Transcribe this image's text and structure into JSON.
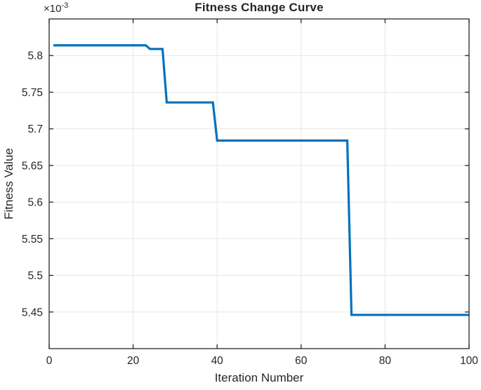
{
  "title": "Fitness Change Curve",
  "axes": {
    "xlabel": "Iteration Number",
    "ylabel": "Fitness Value",
    "y_multiplier_prefix": "×10",
    "y_multiplier_exponent": "-3"
  },
  "chart_data": {
    "type": "line",
    "title": "Fitness Change Curve",
    "xlabel": "Iteration Number",
    "ylabel": "Fitness Value",
    "y_scale_note": "y values are ×10^-3",
    "xlim": [
      0,
      100
    ],
    "ylim": [
      5.4,
      5.85
    ],
    "x_ticks": [
      0,
      20,
      40,
      60,
      80,
      100
    ],
    "x_tick_labels": [
      "0",
      "20",
      "40",
      "60",
      "80",
      "100"
    ],
    "y_ticks": [
      5.45,
      5.5,
      5.55,
      5.6,
      5.65,
      5.7,
      5.75,
      5.8
    ],
    "y_tick_labels": [
      "5.45",
      "5.5",
      "5.55",
      "5.6",
      "5.65",
      "5.7",
      "5.75",
      "5.8"
    ],
    "grid": true,
    "legend": "none",
    "colors": {
      "line": "#0072BD",
      "grid": "#E6E6E6",
      "axis": "#262626",
      "background": "#FFFFFF"
    },
    "series": [
      {
        "name": "fitness-value",
        "points": [
          [
            1,
            5.814
          ],
          [
            23,
            5.814
          ],
          [
            24,
            5.809
          ],
          [
            27,
            5.809
          ],
          [
            28,
            5.736
          ],
          [
            39,
            5.736
          ],
          [
            40,
            5.684
          ],
          [
            71,
            5.684
          ],
          [
            72,
            5.446
          ],
          [
            100,
            5.446
          ]
        ]
      }
    ]
  }
}
